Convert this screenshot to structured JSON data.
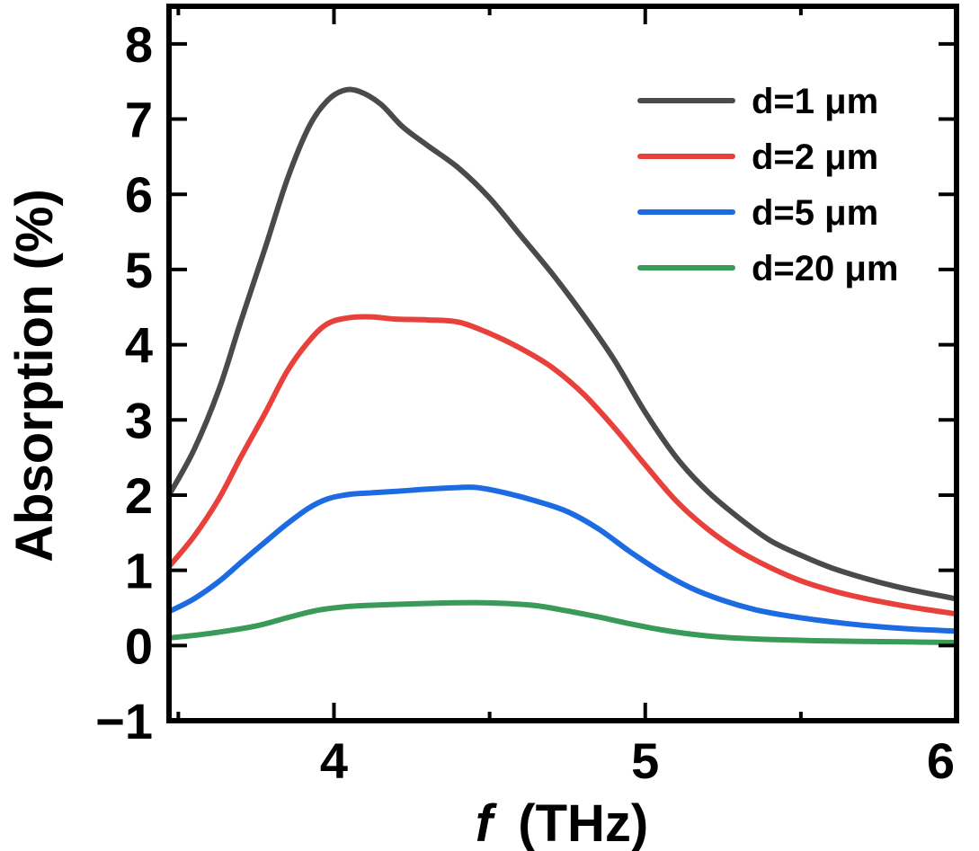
{
  "chart_data": {
    "type": "line",
    "title": "",
    "xlabel_italic": "f",
    "xlabel_unit": "(THz)",
    "ylabel": "Absorption (%)",
    "xlim": [
      3.47,
      6.0
    ],
    "ylim": [
      -1,
      8.5
    ],
    "xticks": [
      4,
      5,
      6
    ],
    "yticks": [
      -1,
      0,
      1,
      2,
      3,
      4,
      5,
      6,
      7,
      8
    ],
    "legend_position": "top-right",
    "series": [
      {
        "name": "d=1 μm",
        "color": "#4a4a4a",
        "points": [
          [
            3.47,
            2.0
          ],
          [
            3.55,
            2.6
          ],
          [
            3.63,
            3.4
          ],
          [
            3.7,
            4.3
          ],
          [
            3.78,
            5.3
          ],
          [
            3.85,
            6.2
          ],
          [
            3.92,
            6.9
          ],
          [
            3.98,
            7.25
          ],
          [
            4.03,
            7.38
          ],
          [
            4.08,
            7.37
          ],
          [
            4.15,
            7.2
          ],
          [
            4.22,
            6.9
          ],
          [
            4.3,
            6.65
          ],
          [
            4.4,
            6.35
          ],
          [
            4.5,
            5.95
          ],
          [
            4.6,
            5.45
          ],
          [
            4.7,
            4.95
          ],
          [
            4.8,
            4.4
          ],
          [
            4.9,
            3.8
          ],
          [
            5.0,
            3.1
          ],
          [
            5.1,
            2.5
          ],
          [
            5.2,
            2.05
          ],
          [
            5.3,
            1.7
          ],
          [
            5.4,
            1.4
          ],
          [
            5.5,
            1.2
          ],
          [
            5.6,
            1.03
          ],
          [
            5.7,
            0.9
          ],
          [
            5.8,
            0.79
          ],
          [
            5.9,
            0.7
          ],
          [
            6.0,
            0.62
          ]
        ]
      },
      {
        "name": "d=2 μm",
        "color": "#e8413c",
        "points": [
          [
            3.47,
            1.05
          ],
          [
            3.55,
            1.45
          ],
          [
            3.63,
            1.95
          ],
          [
            3.7,
            2.5
          ],
          [
            3.78,
            3.1
          ],
          [
            3.85,
            3.65
          ],
          [
            3.92,
            4.05
          ],
          [
            3.98,
            4.28
          ],
          [
            4.05,
            4.36
          ],
          [
            4.12,
            4.37
          ],
          [
            4.2,
            4.34
          ],
          [
            4.3,
            4.33
          ],
          [
            4.4,
            4.3
          ],
          [
            4.5,
            4.15
          ],
          [
            4.6,
            3.95
          ],
          [
            4.7,
            3.7
          ],
          [
            4.8,
            3.35
          ],
          [
            4.9,
            2.9
          ],
          [
            5.0,
            2.4
          ],
          [
            5.1,
            1.92
          ],
          [
            5.2,
            1.55
          ],
          [
            5.3,
            1.26
          ],
          [
            5.4,
            1.04
          ],
          [
            5.5,
            0.86
          ],
          [
            5.6,
            0.73
          ],
          [
            5.7,
            0.63
          ],
          [
            5.8,
            0.55
          ],
          [
            5.9,
            0.48
          ],
          [
            6.0,
            0.42
          ]
        ]
      },
      {
        "name": "d=5 μm",
        "color": "#1c6be3",
        "points": [
          [
            3.47,
            0.45
          ],
          [
            3.55,
            0.62
          ],
          [
            3.63,
            0.85
          ],
          [
            3.7,
            1.1
          ],
          [
            3.78,
            1.38
          ],
          [
            3.85,
            1.62
          ],
          [
            3.92,
            1.83
          ],
          [
            3.98,
            1.95
          ],
          [
            4.05,
            2.01
          ],
          [
            4.12,
            2.03
          ],
          [
            4.2,
            2.05
          ],
          [
            4.3,
            2.08
          ],
          [
            4.4,
            2.1
          ],
          [
            4.46,
            2.1
          ],
          [
            4.55,
            2.03
          ],
          [
            4.65,
            1.92
          ],
          [
            4.75,
            1.78
          ],
          [
            4.85,
            1.55
          ],
          [
            4.95,
            1.25
          ],
          [
            5.05,
            0.98
          ],
          [
            5.15,
            0.76
          ],
          [
            5.25,
            0.6
          ],
          [
            5.35,
            0.48
          ],
          [
            5.45,
            0.4
          ],
          [
            5.55,
            0.34
          ],
          [
            5.65,
            0.29
          ],
          [
            5.75,
            0.25
          ],
          [
            5.85,
            0.22
          ],
          [
            5.95,
            0.2
          ],
          [
            6.0,
            0.19
          ]
        ]
      },
      {
        "name": "d=20 μm",
        "color": "#3a9a5a",
        "points": [
          [
            3.47,
            0.1
          ],
          [
            3.6,
            0.16
          ],
          [
            3.75,
            0.26
          ],
          [
            3.85,
            0.37
          ],
          [
            3.95,
            0.47
          ],
          [
            4.05,
            0.52
          ],
          [
            4.15,
            0.54
          ],
          [
            4.3,
            0.56
          ],
          [
            4.45,
            0.57
          ],
          [
            4.55,
            0.56
          ],
          [
            4.65,
            0.53
          ],
          [
            4.75,
            0.46
          ],
          [
            4.85,
            0.38
          ],
          [
            4.95,
            0.29
          ],
          [
            5.05,
            0.21
          ],
          [
            5.15,
            0.15
          ],
          [
            5.25,
            0.11
          ],
          [
            5.4,
            0.08
          ],
          [
            5.6,
            0.06
          ],
          [
            5.8,
            0.05
          ],
          [
            6.0,
            0.04
          ]
        ]
      }
    ]
  }
}
